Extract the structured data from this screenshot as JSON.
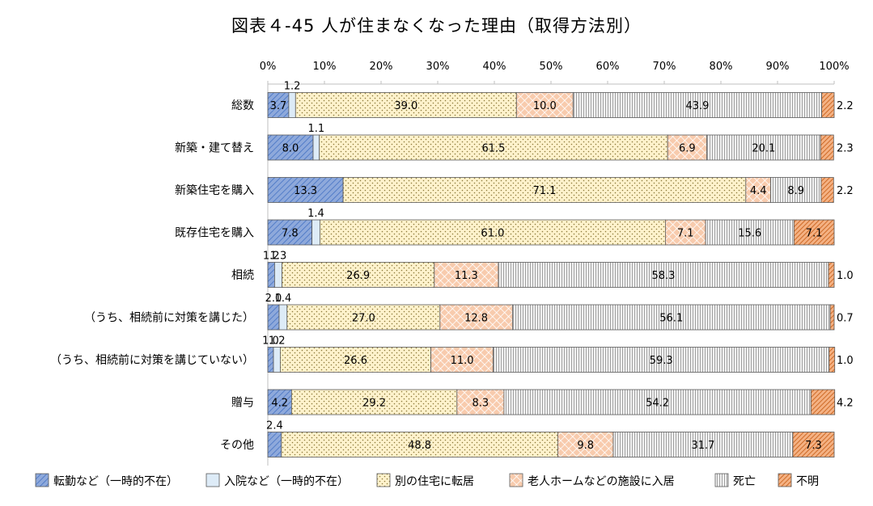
{
  "title": "図表４-45 人が住まなくなった理由（取得方法別）",
  "chart_data": {
    "type": "bar",
    "orientation": "horizontal",
    "stacked": true,
    "normalized": true,
    "title": "図表４-45 人が住まなくなった理由（取得方法別）",
    "x_ticks": [
      "0%",
      "10%",
      "20%",
      "30%",
      "40%",
      "50%",
      "60%",
      "70%",
      "80%",
      "90%",
      "100%"
    ],
    "xlim": [
      0,
      100
    ],
    "grid": false,
    "legend_position": "bottom",
    "categories": [
      "総数",
      "新築・建て替え",
      "新築住宅を購入",
      "既存住宅を購入",
      "相続",
      "（うち、相続前に対策を講じた）",
      "（うち、相続前に対策を講じていない）",
      "贈与",
      "その他"
    ],
    "series": [
      {
        "name": "転勤など（一時的不在）",
        "color": "#8EA9DB",
        "pattern": "diag",
        "values": [
          3.7,
          8.0,
          13.3,
          7.8,
          1.2,
          2.0,
          1.0,
          4.2,
          2.4
        ]
      },
      {
        "name": "入院など（一時的不在）",
        "color": "#DDEBF7",
        "pattern": "none",
        "values": [
          1.2,
          1.1,
          0.0,
          1.4,
          1.3,
          1.4,
          1.2,
          0.0,
          0.0
        ]
      },
      {
        "name": "別の住宅に転居",
        "color": "#FFF2CC",
        "pattern": "dots",
        "values": [
          39.0,
          61.5,
          71.1,
          61.0,
          26.9,
          27.0,
          26.6,
          29.2,
          48.8
        ]
      },
      {
        "name": "老人ホームなどの施設に入居",
        "color": "#F8CBAD",
        "pattern": "cross",
        "values": [
          10.0,
          6.9,
          4.4,
          7.1,
          11.3,
          12.8,
          11.0,
          8.3,
          9.8
        ]
      },
      {
        "name": "死亡",
        "color": "#EDEDED",
        "pattern": "vlines",
        "values": [
          43.9,
          20.1,
          8.9,
          15.6,
          58.3,
          56.1,
          59.3,
          54.2,
          31.7
        ]
      },
      {
        "name": "不明",
        "color": "#F4B183",
        "pattern": "diag-dense",
        "values": [
          2.2,
          2.3,
          2.2,
          7.1,
          1.0,
          0.7,
          1.0,
          4.2,
          7.3
        ]
      }
    ],
    "data_labels": [
      [
        "3.7",
        "1.2",
        "39.0",
        "10.0",
        "43.9",
        "2.2"
      ],
      [
        "8.0",
        "1.1",
        "61.5",
        "6.9",
        "20.1",
        "2.3"
      ],
      [
        "13.3",
        "",
        "71.1",
        "4.4",
        "8.9",
        "2.2"
      ],
      [
        "7.8",
        "1.4",
        "61.0",
        "7.1",
        "15.6",
        "7.1"
      ],
      [
        "1.2",
        "1.3",
        "26.9",
        "11.3",
        "58.3",
        "1.0"
      ],
      [
        "2.0",
        "1.4",
        "27.0",
        "12.8",
        "56.1",
        "0.7"
      ],
      [
        "1.0",
        "1.2",
        "26.6",
        "11.0",
        "59.3",
        "1.0"
      ],
      [
        "4.2",
        "",
        "29.2",
        "8.3",
        "54.2",
        "4.2"
      ],
      [
        "2.4",
        "",
        "48.8",
        "9.8",
        "31.7",
        "7.3"
      ]
    ]
  }
}
